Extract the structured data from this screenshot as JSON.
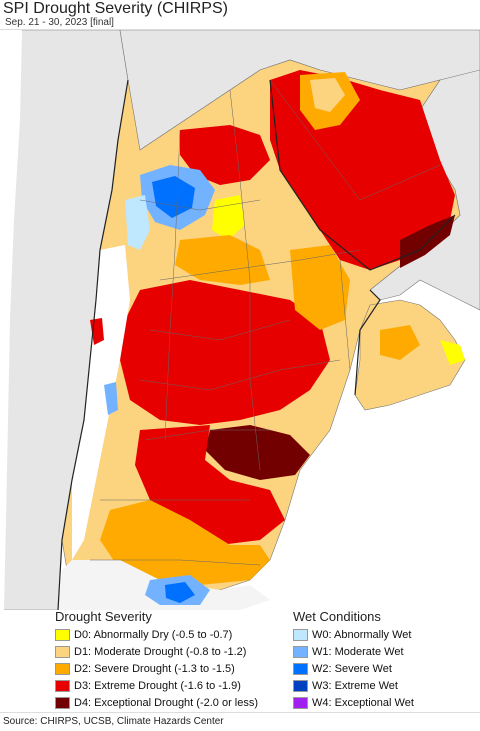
{
  "header": {
    "title": "SPI Drought Severity (CHIRPS)",
    "subtitle": "Sep. 21 - 30, 2023 [final]"
  },
  "legend": {
    "drought": {
      "title": "Drought Severity",
      "items": [
        {
          "label": "D0: Abnormally Dry (-0.5 to -0.7)",
          "color": "#ffff00"
        },
        {
          "label": "D1: Moderate Drought (-0.8 to -1.2)",
          "color": "#fcd37f"
        },
        {
          "label": "D2: Severe Drought (-1.3 to -1.5)",
          "color": "#ffaa00"
        },
        {
          "label": "D3: Extreme Drought (-1.6 to -1.9)",
          "color": "#e60000"
        },
        {
          "label": "D4: Exceptional Drought (-2.0 or less)",
          "color": "#730000"
        }
      ]
    },
    "wet": {
      "title": "Wet Conditions",
      "items": [
        {
          "label": "W0: Abnormally Wet",
          "color": "#bfe8ff"
        },
        {
          "label": "W1: Moderate Wet",
          "color": "#73b2ff"
        },
        {
          "label": "W2: Severe Wet",
          "color": "#0070ff"
        },
        {
          "label": "W3: Extreme Wet",
          "color": "#0040c0"
        },
        {
          "label": "W4: Exceptional Wet",
          "color": "#a020f0"
        }
      ]
    }
  },
  "footer": {
    "source": "Source: CHIRPS, UCSB, Climate Hazards Center"
  }
}
